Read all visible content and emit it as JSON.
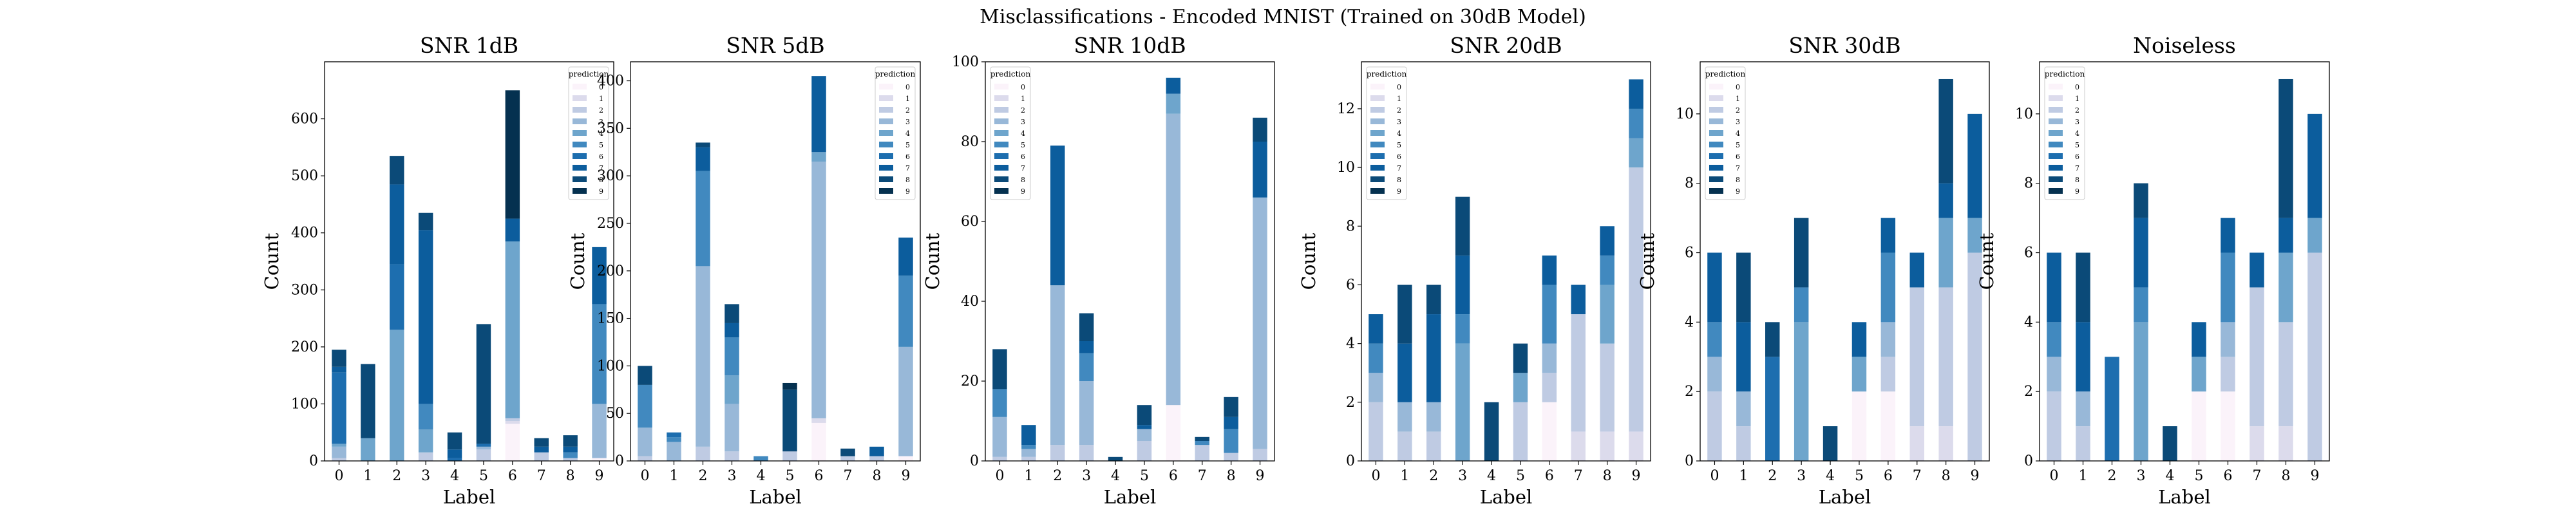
{
  "figure": {
    "suptitle": "Misclassifications - Encoded MNIST (Trained on 30dB Model)"
  },
  "chart_data": [
    {
      "type": "bar",
      "stacked": true,
      "title": "SNR 1dB",
      "xlabel": "Label",
      "ylabel": "Count",
      "categories": [
        "0",
        "1",
        "2",
        "3",
        "4",
        "5",
        "6",
        "7",
        "8",
        "9"
      ],
      "ylim": [
        0,
        700
      ],
      "yticks": [
        0,
        100,
        200,
        300,
        400,
        500,
        600
      ],
      "legend": {
        "title": "prediction",
        "position": "upper right"
      },
      "series": [
        {
          "name": "0",
          "values": [
            0,
            0,
            0,
            0,
            0,
            0,
            65,
            0,
            0,
            5
          ]
        },
        {
          "name": "1",
          "values": [
            0,
            0,
            0,
            0,
            0,
            0,
            5,
            0,
            0,
            0
          ]
        },
        {
          "name": "2",
          "values": [
            5,
            0,
            0,
            15,
            0,
            20,
            5,
            15,
            5,
            0
          ]
        },
        {
          "name": "3",
          "values": [
            20,
            0,
            0,
            0,
            0,
            5,
            0,
            0,
            0,
            95
          ]
        },
        {
          "name": "4",
          "values": [
            5,
            40,
            230,
            40,
            0,
            0,
            310,
            0,
            0,
            0
          ]
        },
        {
          "name": "5",
          "values": [
            0,
            0,
            0,
            45,
            0,
            0,
            0,
            0,
            10,
            175
          ]
        },
        {
          "name": "6",
          "values": [
            125,
            0,
            115,
            0,
            5,
            5,
            0,
            0,
            0,
            0
          ]
        },
        {
          "name": "7",
          "values": [
            10,
            0,
            140,
            305,
            15,
            0,
            40,
            10,
            10,
            100
          ]
        },
        {
          "name": "8",
          "values": [
            30,
            130,
            50,
            30,
            30,
            210,
            0,
            15,
            20,
            0
          ]
        },
        {
          "name": "9",
          "values": [
            0,
            0,
            0,
            0,
            0,
            0,
            225,
            0,
            0,
            0
          ]
        }
      ]
    },
    {
      "type": "bar",
      "stacked": true,
      "title": "SNR 5dB",
      "xlabel": "Label",
      "ylabel": "Count",
      "categories": [
        "0",
        "1",
        "2",
        "3",
        "4",
        "5",
        "6",
        "7",
        "8",
        "9"
      ],
      "ylim": [
        0,
        420
      ],
      "yticks": [
        0,
        50,
        100,
        150,
        200,
        250,
        300,
        350,
        400
      ],
      "legend": {
        "title": "prediction",
        "position": "upper right"
      },
      "series": [
        {
          "name": "0",
          "values": [
            0,
            0,
            0,
            0,
            0,
            0,
            40,
            0,
            0,
            5
          ]
        },
        {
          "name": "1",
          "values": [
            0,
            0,
            0,
            0,
            0,
            0,
            5,
            0,
            0,
            0
          ]
        },
        {
          "name": "2",
          "values": [
            5,
            0,
            15,
            10,
            0,
            10,
            0,
            5,
            5,
            0
          ]
        },
        {
          "name": "3",
          "values": [
            30,
            20,
            190,
            50,
            0,
            0,
            270,
            0,
            0,
            115
          ]
        },
        {
          "name": "4",
          "values": [
            0,
            0,
            0,
            30,
            0,
            0,
            10,
            0,
            0,
            0
          ]
        },
        {
          "name": "5",
          "values": [
            45,
            5,
            100,
            40,
            5,
            0,
            0,
            0,
            0,
            75
          ]
        },
        {
          "name": "6",
          "values": [
            0,
            5,
            0,
            0,
            0,
            0,
            0,
            0,
            0,
            0
          ]
        },
        {
          "name": "7",
          "values": [
            0,
            0,
            25,
            15,
            0,
            0,
            80,
            0,
            10,
            40
          ]
        },
        {
          "name": "8",
          "values": [
            20,
            0,
            5,
            20,
            0,
            65,
            0,
            8,
            0,
            0
          ]
        },
        {
          "name": "9",
          "values": [
            0,
            0,
            0,
            0,
            0,
            7,
            0,
            0,
            0,
            0
          ]
        }
      ]
    },
    {
      "type": "bar",
      "stacked": true,
      "title": "SNR 10dB",
      "xlabel": "Label",
      "ylabel": "Count",
      "categories": [
        "0",
        "1",
        "2",
        "3",
        "4",
        "5",
        "6",
        "7",
        "8",
        "9"
      ],
      "ylim": [
        0,
        100
      ],
      "yticks": [
        0,
        20,
        40,
        60,
        80,
        100
      ],
      "legend": {
        "title": "prediction",
        "position": "upper left"
      },
      "series": [
        {
          "name": "0",
          "values": [
            0,
            0,
            0,
            0,
            0,
            0,
            14,
            0,
            0,
            0
          ]
        },
        {
          "name": "1",
          "values": [
            0,
            0,
            0,
            0,
            0,
            0,
            0,
            0,
            0,
            0
          ]
        },
        {
          "name": "2",
          "values": [
            1,
            1,
            4,
            4,
            0,
            5,
            0,
            4,
            2,
            3
          ]
        },
        {
          "name": "3",
          "values": [
            10,
            2,
            40,
            16,
            0,
            3,
            73,
            0,
            0,
            63
          ]
        },
        {
          "name": "4",
          "values": [
            0,
            0,
            0,
            0,
            0,
            0,
            5,
            0,
            0,
            0
          ]
        },
        {
          "name": "5",
          "values": [
            7,
            1,
            0,
            7,
            0,
            0,
            0,
            1,
            6,
            0
          ]
        },
        {
          "name": "6",
          "values": [
            0,
            0,
            0,
            0,
            0,
            0,
            0,
            0,
            0,
            0
          ]
        },
        {
          "name": "7",
          "values": [
            0,
            5,
            35,
            3,
            0,
            1,
            4,
            0,
            3,
            14
          ]
        },
        {
          "name": "8",
          "values": [
            10,
            0,
            0,
            7,
            1,
            5,
            0,
            1,
            5,
            6
          ]
        },
        {
          "name": "9",
          "values": [
            0,
            0,
            0,
            0,
            0,
            0,
            0,
            0,
            0,
            0
          ]
        }
      ]
    },
    {
      "type": "bar",
      "stacked": true,
      "title": "SNR 20dB",
      "xlabel": "Label",
      "ylabel": "Count",
      "categories": [
        "0",
        "1",
        "2",
        "3",
        "4",
        "5",
        "6",
        "7",
        "8",
        "9"
      ],
      "ylim": [
        0,
        13.6
      ],
      "yticks": [
        0,
        2,
        4,
        6,
        8,
        10,
        12
      ],
      "legend": {
        "title": "prediction",
        "position": "upper left"
      },
      "series": [
        {
          "name": "0",
          "values": [
            0,
            0,
            0,
            0,
            0,
            0,
            2,
            0,
            0,
            0
          ]
        },
        {
          "name": "1",
          "values": [
            0,
            0,
            0,
            0,
            0,
            0,
            0,
            1,
            1,
            1
          ]
        },
        {
          "name": "2",
          "values": [
            2,
            1,
            1,
            0,
            0,
            2,
            1,
            4,
            3,
            9
          ]
        },
        {
          "name": "3",
          "values": [
            1,
            1,
            1,
            0,
            0,
            0,
            1,
            0,
            0,
            0
          ]
        },
        {
          "name": "4",
          "values": [
            0,
            0,
            0,
            4,
            0,
            1,
            0,
            0,
            2,
            1
          ]
        },
        {
          "name": "5",
          "values": [
            1,
            0,
            0,
            1,
            0,
            0,
            2,
            0,
            1,
            1
          ]
        },
        {
          "name": "6",
          "values": [
            0,
            0,
            0,
            0,
            0,
            0,
            0,
            0,
            0,
            0
          ]
        },
        {
          "name": "7",
          "values": [
            1,
            2,
            3,
            2,
            0,
            0,
            1,
            1,
            1,
            1
          ]
        },
        {
          "name": "8",
          "values": [
            0,
            2,
            1,
            2,
            2,
            1,
            0,
            0,
            0,
            0
          ]
        },
        {
          "name": "9",
          "values": [
            0,
            0,
            0,
            0,
            0,
            0,
            0,
            0,
            0,
            0
          ]
        }
      ]
    },
    {
      "type": "bar",
      "stacked": true,
      "title": "SNR 30dB",
      "xlabel": "Label",
      "ylabel": "Count",
      "categories": [
        "0",
        "1",
        "2",
        "3",
        "4",
        "5",
        "6",
        "7",
        "8",
        "9"
      ],
      "ylim": [
        0,
        11.5
      ],
      "yticks": [
        0,
        2,
        4,
        6,
        8,
        10
      ],
      "legend": {
        "title": "prediction",
        "position": "upper left"
      },
      "series": [
        {
          "name": "0",
          "values": [
            0,
            0,
            0,
            0,
            0,
            2,
            2,
            0,
            0,
            0
          ]
        },
        {
          "name": "1",
          "values": [
            0,
            0,
            0,
            0,
            0,
            0,
            0,
            1,
            1,
            0
          ]
        },
        {
          "name": "2",
          "values": [
            2,
            1,
            0,
            0,
            0,
            0,
            1,
            4,
            4,
            6
          ]
        },
        {
          "name": "3",
          "values": [
            1,
            1,
            0,
            0,
            0,
            0,
            1,
            0,
            0,
            0
          ]
        },
        {
          "name": "4",
          "values": [
            0,
            0,
            0,
            4,
            0,
            1,
            0,
            0,
            2,
            1
          ]
        },
        {
          "name": "5",
          "values": [
            1,
            0,
            0,
            1,
            0,
            0,
            2,
            0,
            0,
            0
          ]
        },
        {
          "name": "6",
          "values": [
            0,
            0,
            3,
            0,
            0,
            0,
            0,
            0,
            0,
            0
          ]
        },
        {
          "name": "7",
          "values": [
            2,
            2,
            0,
            0,
            0,
            1,
            1,
            1,
            1,
            3
          ]
        },
        {
          "name": "8",
          "values": [
            0,
            2,
            1,
            2,
            1,
            0,
            0,
            0,
            3,
            0
          ]
        },
        {
          "name": "9",
          "values": [
            0,
            0,
            0,
            0,
            0,
            0,
            0,
            0,
            0,
            0
          ]
        }
      ]
    },
    {
      "type": "bar",
      "stacked": true,
      "title": "Noiseless",
      "xlabel": "Label",
      "ylabel": "Count",
      "categories": [
        "0",
        "1",
        "2",
        "3",
        "4",
        "5",
        "6",
        "7",
        "8",
        "9"
      ],
      "ylim": [
        0,
        11.5
      ],
      "yticks": [
        0,
        2,
        4,
        6,
        8,
        10
      ],
      "legend": {
        "title": "prediction",
        "position": "upper left"
      },
      "series": [
        {
          "name": "0",
          "values": [
            0,
            0,
            0,
            0,
            0,
            2,
            2,
            0,
            0,
            0
          ]
        },
        {
          "name": "1",
          "values": [
            0,
            0,
            0,
            0,
            0,
            0,
            0,
            1,
            1,
            0
          ]
        },
        {
          "name": "2",
          "values": [
            2,
            1,
            0,
            0,
            0,
            0,
            1,
            4,
            3,
            6
          ]
        },
        {
          "name": "3",
          "values": [
            1,
            1,
            0,
            0,
            0,
            0,
            1,
            0,
            0,
            0
          ]
        },
        {
          "name": "4",
          "values": [
            0,
            0,
            0,
            4,
            0,
            1,
            0,
            0,
            2,
            1
          ]
        },
        {
          "name": "5",
          "values": [
            1,
            0,
            0,
            1,
            0,
            0,
            2,
            0,
            0,
            0
          ]
        },
        {
          "name": "6",
          "values": [
            0,
            0,
            3,
            0,
            0,
            0,
            0,
            0,
            0,
            0
          ]
        },
        {
          "name": "7",
          "values": [
            2,
            2,
            0,
            2,
            0,
            1,
            1,
            1,
            1,
            3
          ]
        },
        {
          "name": "8",
          "values": [
            0,
            2,
            0,
            1,
            1,
            0,
            0,
            0,
            4,
            0
          ]
        },
        {
          "name": "9",
          "values": [
            0,
            0,
            0,
            0,
            0,
            0,
            0,
            0,
            0,
            0
          ]
        }
      ]
    }
  ],
  "colors": {
    "palette": [
      "#fbf3fa",
      "#dcdbec",
      "#bfcbe3",
      "#98b8d8",
      "#6ea5cc",
      "#4189bf",
      "#1d6eaf",
      "#0c5d9d",
      "#0b4a78",
      "#053150"
    ],
    "axes": "#000000"
  }
}
